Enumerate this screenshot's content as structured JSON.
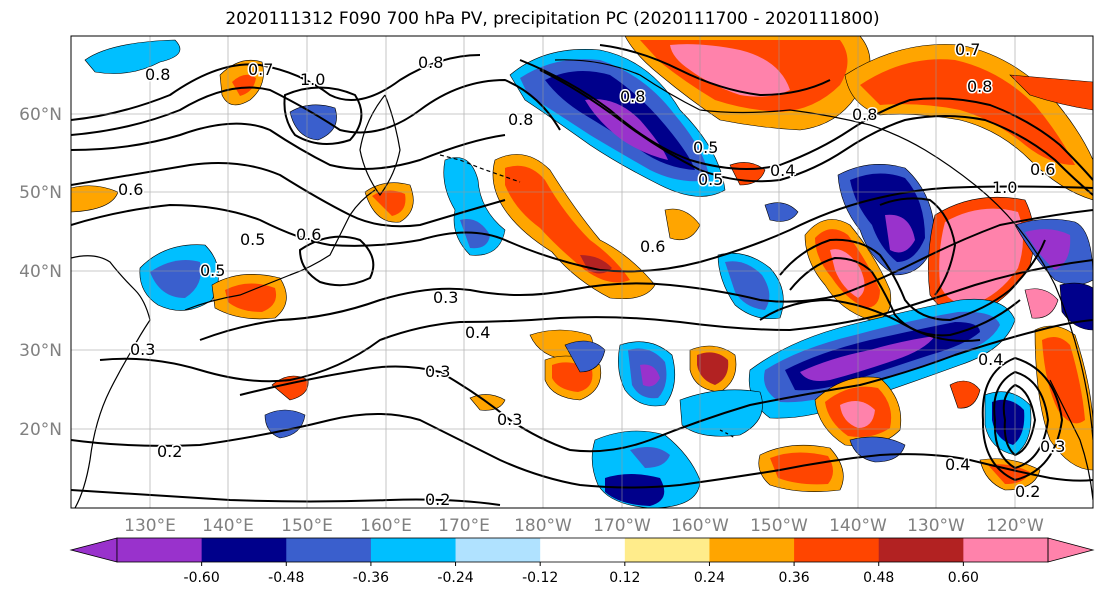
{
  "title": "2020111312 F090 700 hPa PV, precipitation PC (2020111700 - 2020111800)",
  "latitudes": [
    "60°N",
    "50°N",
    "40°N",
    "30°N",
    "20°N"
  ],
  "longitudes": [
    "130°E",
    "140°E",
    "150°E",
    "160°E",
    "170°E",
    "180°W",
    "170°W",
    "160°W",
    "150°W",
    "140°W",
    "130°W",
    "120°W"
  ],
  "colorbar": {
    "colors": [
      "#9932cc",
      "#00008b",
      "#3a5fcd",
      "#00bfff",
      "#b0e2ff",
      "#ffffff",
      "#ffec8b",
      "#ffa500",
      "#ff4500",
      "#b22222",
      "#ff82ab"
    ],
    "tick_labels": [
      "-0.60",
      "-0.48",
      "-0.36",
      "-0.24",
      "-0.12",
      "0.12",
      "0.24",
      "0.36",
      "0.48",
      "0.60"
    ]
  },
  "contour_labels": [
    "0.8",
    "0.7",
    "1.0",
    "0.8",
    "0.8",
    "0.6",
    "0.5",
    "0.6",
    "0.5",
    "0.4",
    "0.6",
    "0.3",
    "0.3",
    "0.4",
    "0.3",
    "0.3",
    "0.2",
    "0.2",
    "0.5",
    "0.4",
    "0.8",
    "0.6",
    "0.7",
    "0.8",
    "1.0",
    "0.8",
    "0.4",
    "0.2",
    "0.5",
    "0.3"
  ]
}
